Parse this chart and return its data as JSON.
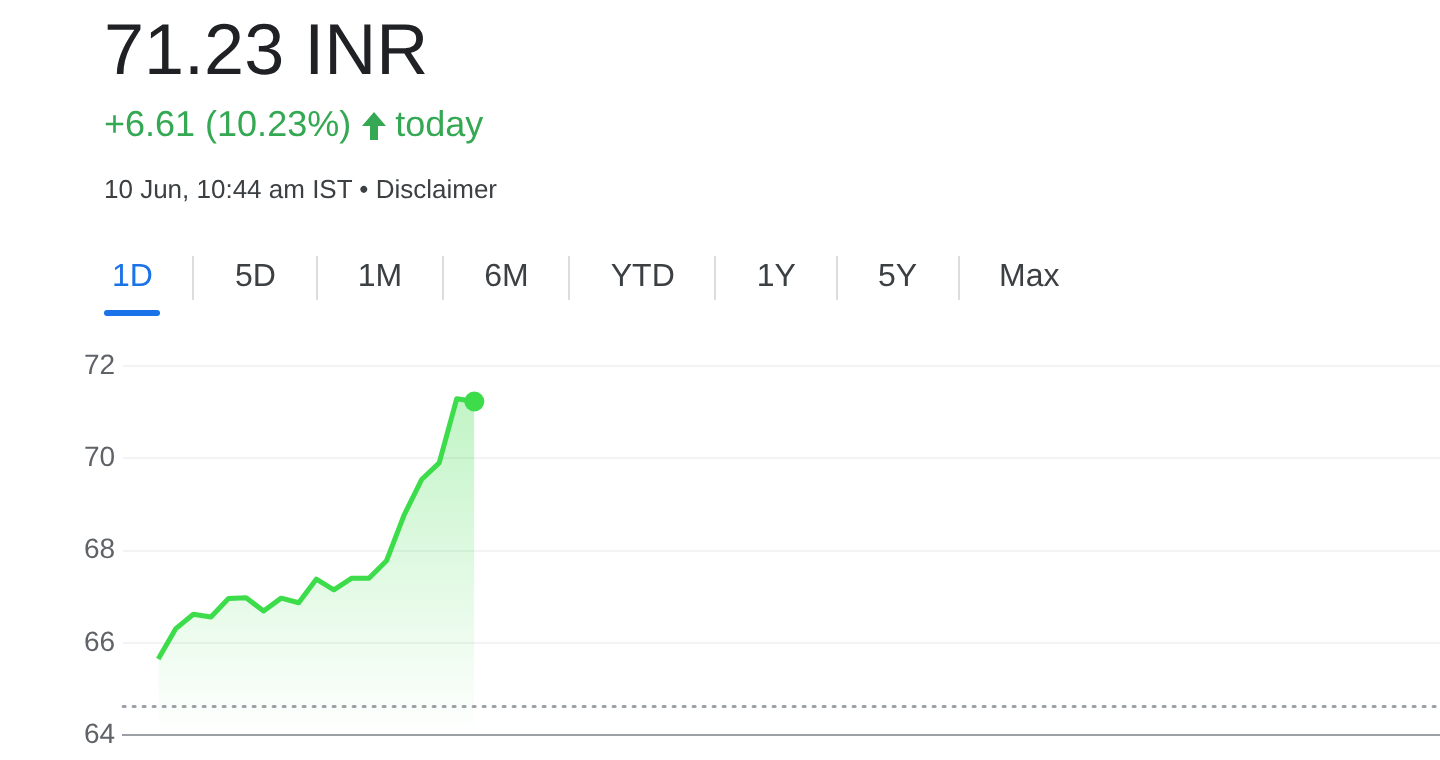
{
  "chart_data": {
    "type": "area",
    "title": "71.23 INR",
    "subtitle": "+6.61 (10.23%)",
    "annotations": [
      "today",
      "10 Jun, 10:44 am IST • Disclaimer",
      "1D",
      "5D",
      "1M",
      "6M",
      "YTD",
      "1Y",
      "5Y",
      "Max"
    ],
    "categories": [
      null,
      null,
      null,
      null,
      null,
      null,
      null,
      null,
      null,
      null,
      null,
      null,
      null,
      null,
      null,
      null,
      null,
      null,
      null,
      null,
      null,
      null,
      null,
      null,
      null,
      null,
      null,
      null,
      null,
      null,
      null,
      null,
      null,
      null,
      null,
      null,
      null,
      null,
      null,
      null,
      null,
      null,
      null,
      null,
      null,
      null,
      null,
      null,
      null,
      null,
      null,
      null,
      null,
      null,
      null,
      null,
      null,
      null,
      null,
      null,
      null,
      null,
      null,
      null,
      null,
      null,
      null,
      null,
      null,
      null,
      null,
      null,
      null,
      null,
      null,
      null
    ],
    "series": [
      {
        "color": "#3ddc4b",
        "values": [
          null,
          null,
          65.65,
          66.31,
          66.62,
          66.56,
          66.96,
          66.98,
          66.69,
          66.97,
          66.87,
          67.38,
          67.15,
          67.4,
          67.4,
          67.78,
          68.77,
          69.54,
          69.9,
          71.29,
          71.23,
          null,
          null,
          null,
          null,
          null,
          null,
          null,
          null,
          null,
          null,
          null,
          null,
          null,
          null,
          null,
          null,
          null,
          null,
          null,
          null,
          null,
          null,
          null,
          null,
          null,
          null,
          null,
          null,
          null,
          null,
          null,
          null,
          null,
          null,
          null,
          null,
          null,
          null,
          null,
          null,
          null,
          null,
          null,
          null,
          null,
          null,
          null,
          null,
          null,
          null,
          null,
          null,
          null,
          null,
          null
        ]
      }
    ],
    "ylim": [
      64,
      72
    ],
    "yticks": [
      64,
      66,
      68,
      70,
      72
    ],
    "grid": "y",
    "marker": "none",
    "line_style": "solid",
    "ref_lines": [
      {
        "axis": "y",
        "value": 64.62,
        "line_style": "dotted",
        "color": "#9aa0a6"
      }
    ]
  }
}
